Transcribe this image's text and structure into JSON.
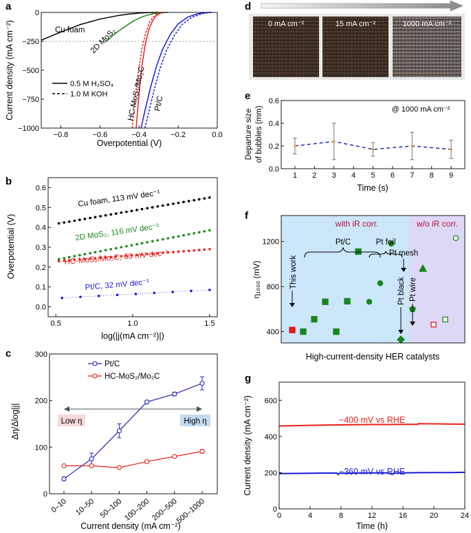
{
  "panels": {
    "a": {
      "label": "a"
    },
    "b": {
      "label": "b"
    },
    "c": {
      "label": "c"
    },
    "d": {
      "label": "d"
    },
    "e": {
      "label": "e"
    },
    "f": {
      "label": "f"
    },
    "g": {
      "label": "g"
    }
  },
  "colors": {
    "black": "#000000",
    "green": "#1a8a1a",
    "red": "#e8201a",
    "blue": "#1a1ad8",
    "darkblue": "#2424b8",
    "fgreen": "#17861e",
    "fred": "#e01a1a",
    "lightblue": "#cce6fa",
    "lavender": "#ddd8f6",
    "darkred": "#b4123c"
  },
  "chart_data": [
    {
      "id": "a",
      "type": "line",
      "xlabel": "Overpotential (V)",
      "ylabel": "Current density (mA cm⁻²)",
      "xlim": [
        -0.9,
        0.0
      ],
      "ylim": [
        -1000,
        0
      ],
      "xticks": [
        -0.8,
        -0.6,
        -0.4,
        -0.2,
        0.0
      ],
      "xtick_labels": [
        "−0.8",
        "−0.6",
        "−0.4",
        "−0.2",
        "0.0"
      ],
      "yticks": [
        0,
        -250,
        -500,
        -750,
        -1000
      ],
      "ytick_labels": [
        "0",
        "−250",
        "−500",
        "−750",
        "−1000"
      ],
      "reference_line": -250,
      "legend": [
        {
          "style": "solid",
          "label": "0.5 M H₂SO₄"
        },
        {
          "style": "dashed",
          "label": "1.0 M KOH"
        }
      ],
      "series": [
        {
          "name": "Cu foam",
          "color": "#000000",
          "style": "solid",
          "x": [
            -0.9,
            -0.8,
            -0.7,
            -0.6,
            -0.5,
            -0.45,
            -0.4,
            -0.35,
            -0.3
          ],
          "y": [
            -240,
            -170,
            -105,
            -58,
            -25,
            -14,
            -6,
            -2,
            0
          ]
        },
        {
          "name": "2D MoS₂",
          "color": "#1a8a1a",
          "style": "solid",
          "x": [
            -0.57,
            -0.52,
            -0.47,
            -0.43,
            -0.39,
            -0.36,
            -0.33,
            -0.3,
            -0.27,
            -0.25
          ],
          "y": [
            -255,
            -180,
            -120,
            -75,
            -42,
            -25,
            -12,
            -5,
            -1,
            0
          ]
        },
        {
          "name": "HC-MoS₂/Mo₂C (H₂SO₄)",
          "color": "#e8201a",
          "style": "solid",
          "x": [
            -0.415,
            -0.405,
            -0.395,
            -0.385,
            -0.37,
            -0.35,
            -0.33,
            -0.31,
            -0.29,
            -0.27
          ],
          "y": [
            -1000,
            -800,
            -620,
            -460,
            -290,
            -150,
            -70,
            -25,
            -6,
            0
          ]
        },
        {
          "name": "HC-MoS₂/Mo₂C (KOH)",
          "color": "#e8201a",
          "style": "dashed",
          "x": [
            -0.435,
            -0.425,
            -0.413,
            -0.4,
            -0.385,
            -0.365,
            -0.345,
            -0.32,
            -0.3,
            -0.28
          ],
          "y": [
            -1000,
            -820,
            -640,
            -470,
            -310,
            -170,
            -80,
            -25,
            -6,
            0
          ]
        },
        {
          "name": "Pt/C (H₂SO₄)",
          "color": "#1a1ad8",
          "style": "solid",
          "x": [
            -0.39,
            -0.37,
            -0.34,
            -0.31,
            -0.28,
            -0.24,
            -0.2,
            -0.15,
            -0.1,
            -0.06,
            -0.03
          ],
          "y": [
            -1000,
            -850,
            -640,
            -460,
            -320,
            -190,
            -100,
            -40,
            -12,
            -3,
            0
          ]
        },
        {
          "name": "Pt/C (KOH)",
          "color": "#1a1ad8",
          "style": "dashed",
          "x": [
            -0.37,
            -0.35,
            -0.32,
            -0.29,
            -0.26,
            -0.22,
            -0.18,
            -0.13,
            -0.08,
            -0.05,
            -0.03
          ],
          "y": [
            -1000,
            -860,
            -650,
            -470,
            -330,
            -200,
            -105,
            -42,
            -12,
            -3,
            0
          ]
        }
      ],
      "annotations": [
        "Cu foam",
        "2D MoS₂",
        "HC-MoS₂/Mo₂C",
        "Pt/C"
      ]
    },
    {
      "id": "b",
      "type": "scatter",
      "xlabel": "log(|j(mA cm⁻²)|)",
      "ylabel": "Overpotential (V)",
      "xlim": [
        0.45,
        1.55
      ],
      "ylim": [
        -0.05,
        0.65
      ],
      "xticks": [
        0.5,
        1.0,
        1.5
      ],
      "xtick_labels": [
        "0.5",
        "1.0",
        "1.5"
      ],
      "yticks": [
        0.0,
        0.1,
        0.2,
        0.3,
        0.4,
        0.5,
        0.6
      ],
      "ytick_labels": [
        "0.0",
        "0.1",
        "0.2",
        "0.3",
        "0.4",
        "0.5",
        "0.6"
      ],
      "series": [
        {
          "name": "Cu foam, 113 mV dec⁻¹",
          "color": "#000000",
          "x_start": 0.52,
          "x_end": 1.5,
          "y_start": 0.42,
          "y_end": 0.55,
          "n_points": 30
        },
        {
          "name": "2D MoS₂, 116 mV dec⁻¹",
          "color": "#1a8a1a",
          "x_start": 0.52,
          "x_end": 1.5,
          "y_start": 0.24,
          "y_end": 0.385,
          "n_points": 30
        },
        {
          "name": "HC-MoS₂/Mo₂C, 60 mV dec⁻¹",
          "color": "#e8201a",
          "x_start": 0.52,
          "x_end": 1.5,
          "y_start": 0.23,
          "y_end": 0.29,
          "n_points": 30
        },
        {
          "name": "Pt/C, 32 mV dec⁻¹",
          "color": "#1a1ad8",
          "x_start": 0.54,
          "x_end": 1.5,
          "y_start": 0.045,
          "y_end": 0.085,
          "n_points": 9
        }
      ]
    },
    {
      "id": "c",
      "type": "line",
      "xlabel": "Current density (mA cm⁻²)",
      "ylabel": "Δη/Δlog|j|",
      "categories": [
        "0–10",
        "10–50",
        "50–100",
        "100–200",
        "200–500",
        "500–1000"
      ],
      "ylim": [
        0,
        300
      ],
      "yticks": [
        0,
        100,
        200,
        300
      ],
      "ytick_labels": [
        "0",
        "100",
        "200",
        "300"
      ],
      "series": [
        {
          "name": "Pt/C",
          "color": "#2424b8",
          "values": [
            32,
            75,
            135,
            197,
            214,
            237
          ],
          "errors": [
            4,
            12,
            15,
            3,
            4,
            14
          ]
        },
        {
          "name": "HC-MoS₂/Mo₂C",
          "color": "#e8201a",
          "values": [
            60,
            60,
            56,
            69,
            80,
            91
          ],
          "errors": [
            2,
            3,
            2,
            3,
            3,
            4
          ]
        }
      ],
      "annotations": [
        "Low η",
        "High η"
      ]
    },
    {
      "id": "e",
      "type": "line",
      "title": "@ 1000 mA cm⁻²",
      "xlabel": "Time (s)",
      "ylabel": "Departure size of bubbles (mm)",
      "xlim": [
        0.3,
        9.7
      ],
      "xticks": [
        1,
        2,
        3,
        4,
        5,
        6,
        7,
        8,
        9
      ],
      "ylim": [
        0.0,
        0.6
      ],
      "yticks": [
        0.0,
        0.2,
        0.4,
        0.6
      ],
      "ytick_labels": [
        "0.0",
        "0.2",
        "0.4",
        "0.6"
      ],
      "x": [
        1,
        3,
        5,
        7,
        9
      ],
      "y": [
        0.2,
        0.24,
        0.17,
        0.2,
        0.17
      ],
      "errors": [
        0.07,
        0.16,
        0.06,
        0.12,
        0.08
      ],
      "color": "#2424b8"
    },
    {
      "id": "f",
      "type": "scatter",
      "xlabel": "High-current-density HER catalysts",
      "ylabel": "η₁₀₀₀ (mV)",
      "ylim": [
        300,
        1430
      ],
      "yticks": [
        400,
        800,
        1200
      ],
      "ytick_labels": [
        "400",
        "800",
        "1200"
      ],
      "region_labels": [
        "with iR corr.",
        "w/o iR corr."
      ],
      "group_labels": [
        "Pt/C",
        "Pt foil",
        "Pt mesh",
        "Pt black",
        "Pt wire",
        "This work"
      ],
      "points": [
        {
          "x": 1,
          "y": 415,
          "marker": "square",
          "color": "#e01a1a",
          "filled": true
        },
        {
          "x": 2,
          "y": 400,
          "marker": "square",
          "color": "#17861e",
          "filled": true
        },
        {
          "x": 3,
          "y": 510,
          "marker": "square",
          "color": "#17861e",
          "filled": true
        },
        {
          "x": 4,
          "y": 665,
          "marker": "square",
          "color": "#17861e",
          "filled": true
        },
        {
          "x": 5,
          "y": 400,
          "marker": "square",
          "color": "#17861e",
          "filled": true
        },
        {
          "x": 6,
          "y": 670,
          "marker": "square",
          "color": "#17861e",
          "filled": true
        },
        {
          "x": 7,
          "y": 1110,
          "marker": "square",
          "color": "#17861e",
          "filled": true
        },
        {
          "x": 8,
          "y": 665,
          "marker": "circle",
          "color": "#17861e",
          "filled": true
        },
        {
          "x": 9,
          "y": 830,
          "marker": "circle",
          "color": "#17861e",
          "filled": true
        },
        {
          "x": 10,
          "y": 1180,
          "marker": "circle",
          "color": "#17861e",
          "filled": true
        },
        {
          "x": 11,
          "y": 330,
          "marker": "diamond",
          "color": "#17861e",
          "filled": true
        },
        {
          "x": 12,
          "y": 600,
          "marker": "pentagon",
          "color": "#17861e",
          "filled": true
        },
        {
          "x": 13,
          "y": 960,
          "marker": "triangle",
          "color": "#17861e",
          "filled": true
        },
        {
          "x": 14,
          "y": 460,
          "marker": "square",
          "color": "#e01a1a",
          "filled": false
        },
        {
          "x": 15,
          "y": 505,
          "marker": "square",
          "color": "#17861e",
          "filled": false
        },
        {
          "x": 16,
          "y": 1230,
          "marker": "circle",
          "color": "#17861e",
          "filled": false
        }
      ]
    },
    {
      "id": "g",
      "type": "line",
      "xlabel": "Time (h)",
      "ylabel": "Current density (mA cm⁻²)",
      "xlim": [
        0,
        24
      ],
      "xticks": [
        0,
        4,
        8,
        12,
        16,
        20,
        24
      ],
      "xtick_labels": [
        "0",
        "4",
        "8",
        "12",
        "16",
        "20",
        "24"
      ],
      "ylim": [
        0,
        700
      ],
      "yticks": [
        0,
        200,
        400,
        600
      ],
      "ytick_labels": [
        "0",
        "200",
        "400",
        "600"
      ],
      "series": [
        {
          "name": "−400 mV vs RHE",
          "color": "#e8201a",
          "x": [
            0,
            2,
            4,
            6,
            8,
            10,
            12,
            14,
            16,
            17.9,
            18,
            20,
            22,
            24
          ],
          "y": [
            458,
            460,
            462,
            463,
            464,
            465,
            466,
            466,
            467,
            467,
            471,
            470,
            469,
            468
          ]
        },
        {
          "name": "−360 mV vs RHE",
          "color": "#1a1ad8",
          "x": [
            0,
            2,
            4,
            6,
            7.5,
            7.6,
            7.8,
            10,
            12,
            14,
            14.6,
            14.9,
            16,
            18,
            20,
            22,
            24
          ],
          "y": [
            195,
            196,
            197,
            198,
            198,
            190,
            197,
            198,
            199,
            199,
            191,
            198,
            199,
            200,
            201,
            201,
            202
          ]
        }
      ]
    }
  ],
  "photos": {
    "panel": "d",
    "labels": [
      "0 mA cm⁻²",
      "15 mA cm⁻²",
      "1000 mA cm⁻²"
    ]
  }
}
